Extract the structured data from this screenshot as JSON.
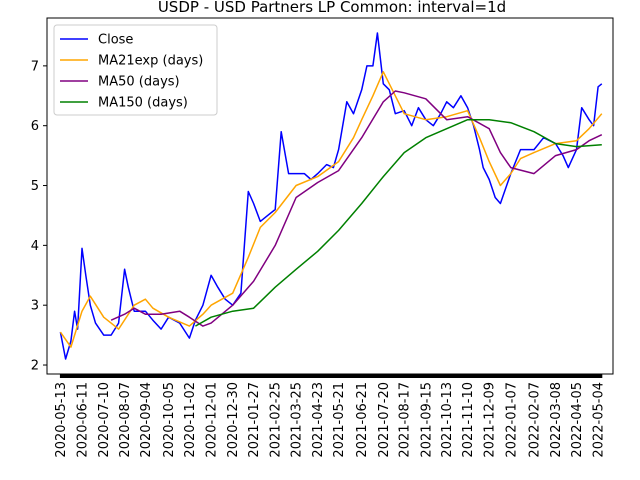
{
  "chart_data": {
    "type": "line",
    "title": "USDP - USD Partners LP Common: interval=1d",
    "xlabel": "",
    "ylabel": "",
    "x_tick_labels": [
      "2020-05-13",
      "2020-06-11",
      "2020-07-10",
      "2020-08-07",
      "2020-09-04",
      "2020-10-05",
      "2020-11-02",
      "2020-12-01",
      "2020-12-30",
      "2021-01-27",
      "2021-02-25",
      "2021-03-25",
      "2021-04-23",
      "2021-05-21",
      "2021-06-21",
      "2021-07-20",
      "2021-08-17",
      "2021-09-15",
      "2021-10-13",
      "2021-11-10",
      "2021-12-09",
      "2022-01-07",
      "2022-02-07",
      "2022-03-08",
      "2022-04-05",
      "2022-05-04"
    ],
    "y_ticks": [
      2,
      3,
      4,
      5,
      6,
      7
    ],
    "ylim": [
      1.85,
      7.8
    ],
    "grid": false,
    "legend_position": "top-left",
    "series": [
      {
        "name": "Close",
        "color": "#0000ff",
        "x": [
          "2020-05-13",
          "2020-05-20",
          "2020-05-27",
          "2020-06-01",
          "2020-06-05",
          "2020-06-11",
          "2020-06-16",
          "2020-06-22",
          "2020-06-29",
          "2020-07-10",
          "2020-07-20",
          "2020-07-30",
          "2020-08-07",
          "2020-08-12",
          "2020-08-20",
          "2020-09-04",
          "2020-09-14",
          "2020-09-25",
          "2020-10-05",
          "2020-10-20",
          "2020-11-02",
          "2020-11-10",
          "2020-11-20",
          "2020-12-01",
          "2020-12-10",
          "2020-12-20",
          "2020-12-30",
          "2021-01-10",
          "2021-01-20",
          "2021-01-27",
          "2021-02-05",
          "2021-02-15",
          "2021-02-25",
          "2021-03-05",
          "2021-03-15",
          "2021-03-25",
          "2021-04-05",
          "2021-04-14",
          "2021-04-23",
          "2021-05-05",
          "2021-05-14",
          "2021-05-21",
          "2021-06-01",
          "2021-06-10",
          "2021-06-21",
          "2021-06-28",
          "2021-07-06",
          "2021-07-12",
          "2021-07-20",
          "2021-07-28",
          "2021-08-05",
          "2021-08-17",
          "2021-08-27",
          "2021-09-05",
          "2021-09-15",
          "2021-09-25",
          "2021-10-05",
          "2021-10-13",
          "2021-10-22",
          "2021-11-01",
          "2021-11-10",
          "2021-11-18",
          "2021-11-26",
          "2021-12-01",
          "2021-12-09",
          "2021-12-17",
          "2021-12-24",
          "2022-01-07",
          "2022-01-20",
          "2022-02-07",
          "2022-02-20",
          "2022-03-08",
          "2022-03-18",
          "2022-03-25",
          "2022-04-05",
          "2022-04-12",
          "2022-04-22",
          "2022-04-28",
          "2022-05-04",
          "2022-05-09"
        ],
        "values": [
          2.55,
          2.1,
          2.4,
          2.9,
          2.6,
          3.95,
          3.5,
          3.0,
          2.7,
          2.5,
          2.5,
          2.7,
          3.6,
          3.3,
          2.9,
          2.9,
          2.75,
          2.6,
          2.8,
          2.7,
          2.45,
          2.75,
          3.0,
          3.5,
          3.3,
          3.1,
          3.0,
          3.2,
          4.9,
          4.7,
          4.4,
          4.5,
          4.6,
          5.9,
          5.2,
          5.2,
          5.2,
          5.1,
          5.2,
          5.35,
          5.3,
          5.6,
          6.4,
          6.2,
          6.6,
          7.0,
          7.0,
          7.55,
          6.7,
          6.6,
          6.2,
          6.25,
          6.0,
          6.3,
          6.1,
          6.0,
          6.2,
          6.4,
          6.3,
          6.5,
          6.3,
          6.0,
          5.6,
          5.3,
          5.1,
          4.8,
          4.7,
          5.2,
          5.6,
          5.6,
          5.8,
          5.7,
          5.5,
          5.3,
          5.6,
          6.3,
          6.1,
          6.0,
          6.65,
          6.7
        ]
      },
      {
        "name": "MA21exp (days)",
        "color": "#ffa500",
        "x": [
          "2020-05-13",
          "2020-05-27",
          "2020-06-11",
          "2020-06-22",
          "2020-07-10",
          "2020-07-30",
          "2020-08-20",
          "2020-09-04",
          "2020-09-14",
          "2020-10-05",
          "2020-11-02",
          "2020-11-20",
          "2020-12-01",
          "2020-12-30",
          "2021-01-20",
          "2021-02-05",
          "2021-02-25",
          "2021-03-25",
          "2021-04-23",
          "2021-05-21",
          "2021-06-10",
          "2021-06-21",
          "2021-07-06",
          "2021-07-20",
          "2021-08-05",
          "2021-08-17",
          "2021-09-15",
          "2021-10-13",
          "2021-11-10",
          "2021-11-26",
          "2021-12-09",
          "2021-12-24",
          "2022-01-07",
          "2022-01-20",
          "2022-02-07",
          "2022-03-08",
          "2022-04-05",
          "2022-04-22",
          "2022-05-09"
        ],
        "values": [
          2.55,
          2.3,
          2.9,
          3.15,
          2.8,
          2.6,
          3.0,
          3.1,
          2.95,
          2.8,
          2.65,
          2.85,
          3.0,
          3.2,
          3.8,
          4.3,
          4.55,
          5.0,
          5.15,
          5.4,
          5.8,
          6.1,
          6.5,
          6.9,
          6.5,
          6.2,
          6.1,
          6.15,
          6.25,
          5.8,
          5.4,
          5.0,
          5.2,
          5.45,
          5.55,
          5.7,
          5.75,
          5.95,
          6.2
        ]
      },
      {
        "name": "MA50 (days)",
        "color": "#800080",
        "x": [
          "2020-07-20",
          "2020-08-07",
          "2020-08-20",
          "2020-09-04",
          "2020-09-25",
          "2020-10-20",
          "2020-11-02",
          "2020-11-20",
          "2020-12-01",
          "2020-12-30",
          "2021-01-27",
          "2021-02-25",
          "2021-03-25",
          "2021-04-23",
          "2021-05-21",
          "2021-06-21",
          "2021-07-20",
          "2021-08-05",
          "2021-08-17",
          "2021-09-15",
          "2021-10-13",
          "2021-11-10",
          "2021-12-09",
          "2021-12-24",
          "2022-01-07",
          "2022-02-07",
          "2022-03-08",
          "2022-04-05",
          "2022-04-22",
          "2022-05-09"
        ],
        "values": [
          2.75,
          2.85,
          2.95,
          2.85,
          2.85,
          2.9,
          2.8,
          2.65,
          2.7,
          3.0,
          3.4,
          4.0,
          4.8,
          5.05,
          5.25,
          5.8,
          6.4,
          6.58,
          6.55,
          6.45,
          6.1,
          6.15,
          5.95,
          5.55,
          5.3,
          5.2,
          5.5,
          5.6,
          5.75,
          5.85
        ]
      },
      {
        "name": "MA150 (days)",
        "color": "#008000",
        "x": [
          "2020-11-10",
          "2020-12-01",
          "2020-12-30",
          "2021-01-27",
          "2021-02-25",
          "2021-03-25",
          "2021-04-23",
          "2021-05-21",
          "2021-06-21",
          "2021-07-20",
          "2021-08-17",
          "2021-09-15",
          "2021-10-13",
          "2021-11-10",
          "2021-12-09",
          "2022-01-07",
          "2022-02-07",
          "2022-03-08",
          "2022-04-05",
          "2022-05-09"
        ],
        "values": [
          2.65,
          2.8,
          2.9,
          2.95,
          3.3,
          3.6,
          3.9,
          4.25,
          4.7,
          5.15,
          5.55,
          5.8,
          5.95,
          6.1,
          6.1,
          6.05,
          5.9,
          5.7,
          5.65,
          5.68
        ]
      }
    ]
  }
}
